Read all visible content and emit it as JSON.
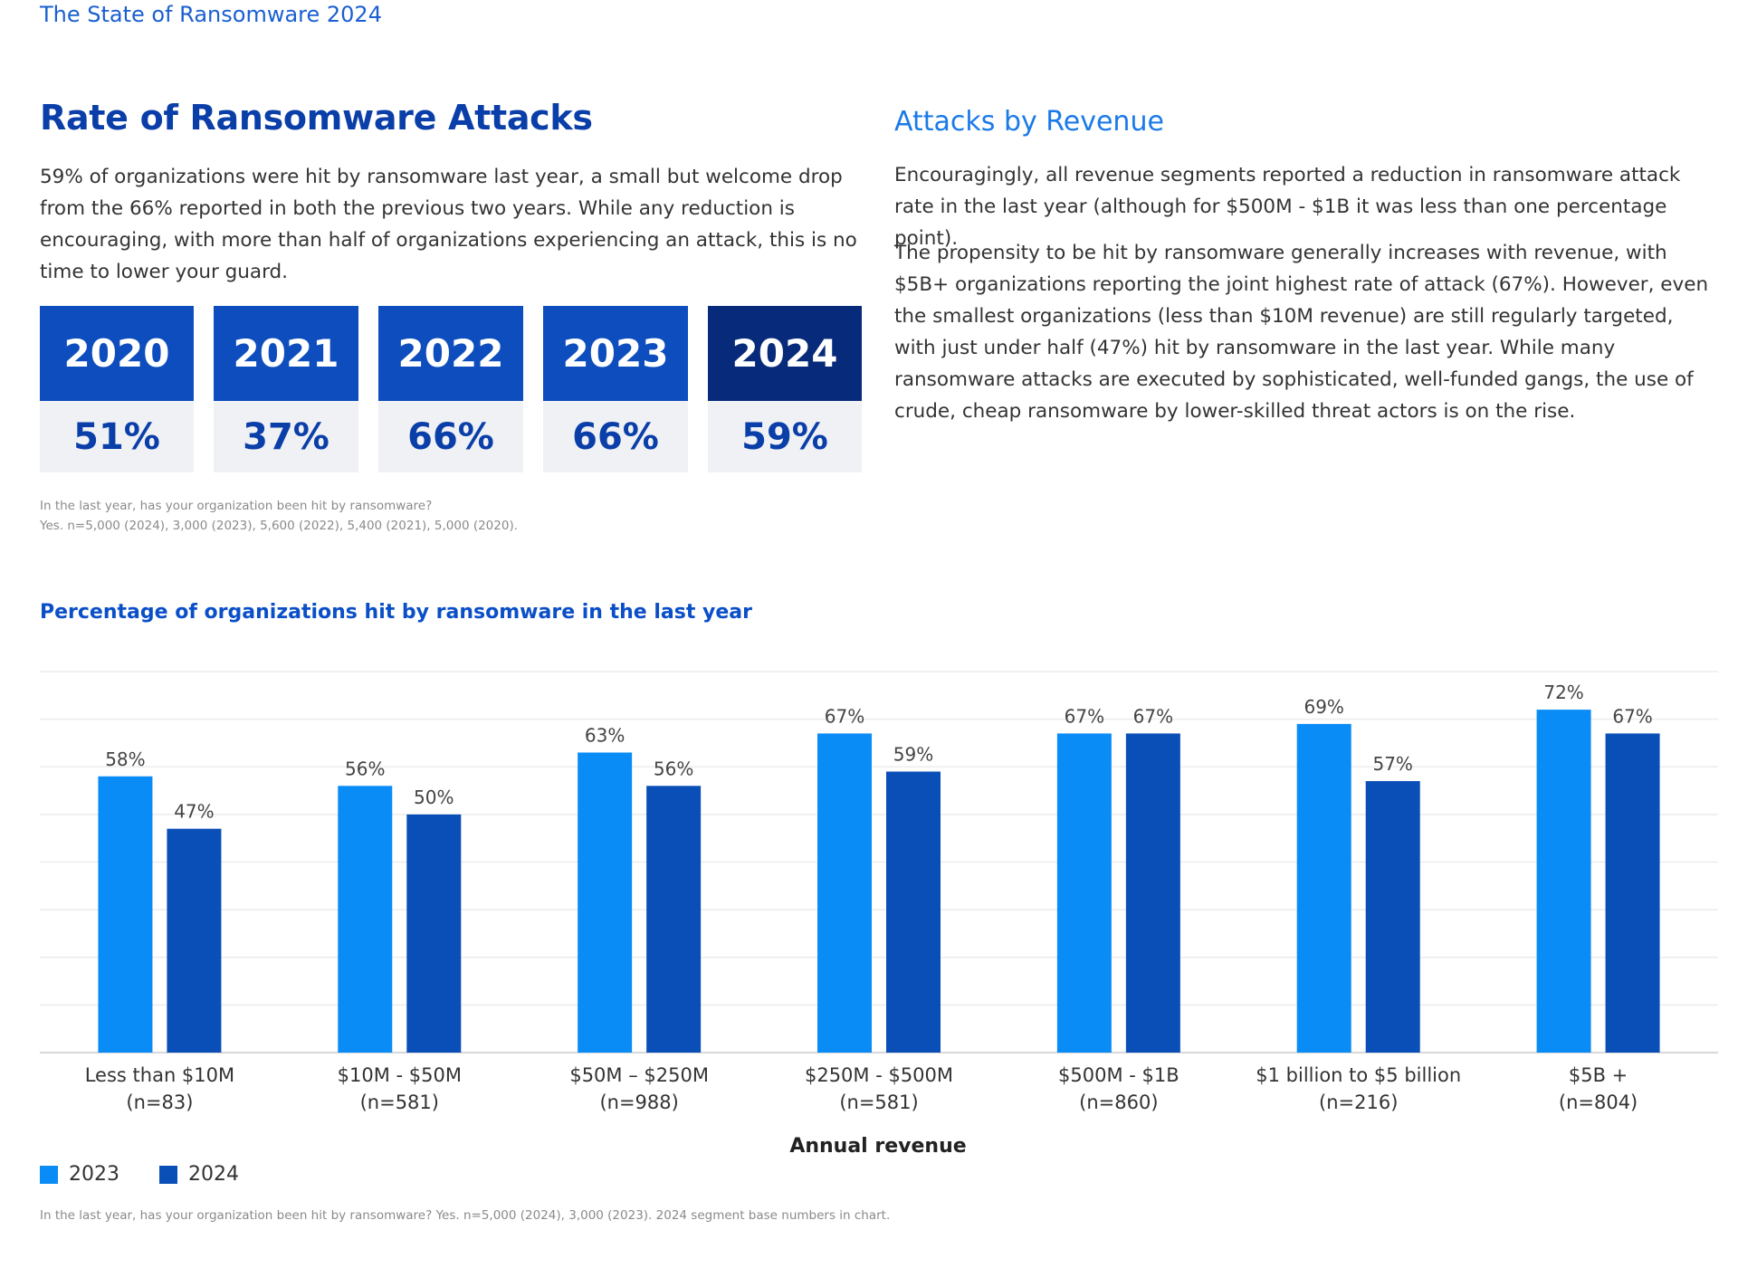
{
  "report_title": "The State of Ransomware 2024",
  "left": {
    "title": "Rate of Ransomware Attacks",
    "intro": "59% of organizations were hit by ransomware last year, a small but welcome drop from the 66% reported in both the previous two years. While any reduction is encouraging, with more than half of organizations experiencing an attack, this is no time to lower your guard.",
    "years": [
      {
        "year": "2020",
        "value": "51%"
      },
      {
        "year": "2021",
        "value": "37%"
      },
      {
        "year": "2022",
        "value": "66%"
      },
      {
        "year": "2023",
        "value": "66%"
      },
      {
        "year": "2024",
        "value": "59%"
      }
    ],
    "footnote_line1": "In the last year, has your organization been hit by ransomware?",
    "footnote_line2": "Yes. n=5,000 (2024), 3,000 (2023), 5,600 (2022), 5,400 (2021), 5,000 (2020)."
  },
  "right": {
    "title": "Attacks by Revenue",
    "para1": "Encouragingly, all revenue segments reported a reduction in ransomware attack rate in the last year (although for $500M - $1B it was less than one percentage point).",
    "para2": "The propensity to be hit by ransomware generally increases with revenue, with $5B+ organizations reporting the joint highest rate of attack (67%).  However, even the smallest organizations (less than $10M revenue) are still regularly targeted, with just under half (47%) hit by ransomware in the last year. While many ransomware attacks are executed by sophisticated, well-funded gangs, the use of crude, cheap ransomware by lower-skilled threat actors is on the rise."
  },
  "colors": {
    "series_2023": "#0a8cf7",
    "series_2024": "#0a4fb8",
    "brand_dark": "#082a7a",
    "brand": "#0d4dbd"
  },
  "chart_data": {
    "type": "bar",
    "title": "Percentage of organizations hit by ransomware in the last year",
    "xlabel": "Annual revenue",
    "ylabel": "",
    "ylim": [
      0,
      80
    ],
    "grid": true,
    "legend": "bottom-left",
    "categories": [
      {
        "name": "Less than $10M",
        "n": "(n=83)"
      },
      {
        "name": "$10M - $50M",
        "n": "(n=581)"
      },
      {
        "name": "$50M – $250M",
        "n": "(n=988)"
      },
      {
        "name": "$250M - $500M",
        "n": "(n=581)"
      },
      {
        "name": "$500M - $1B",
        "n": "(n=860)"
      },
      {
        "name": "$1 billion to $5 billion",
        "n": "(n=216)"
      },
      {
        "name": "$5B +",
        "n": "(n=804)"
      }
    ],
    "series": [
      {
        "name": "2023",
        "values": [
          58,
          56,
          63,
          67,
          67,
          69,
          72
        ]
      },
      {
        "name": "2024",
        "values": [
          47,
          50,
          56,
          59,
          67,
          57,
          67
        ]
      }
    ],
    "footnote": "In the last year, has your organization been hit by ransomware? Yes. n=5,000 (2024), 3,000 (2023). 2024 segment base numbers in chart."
  }
}
